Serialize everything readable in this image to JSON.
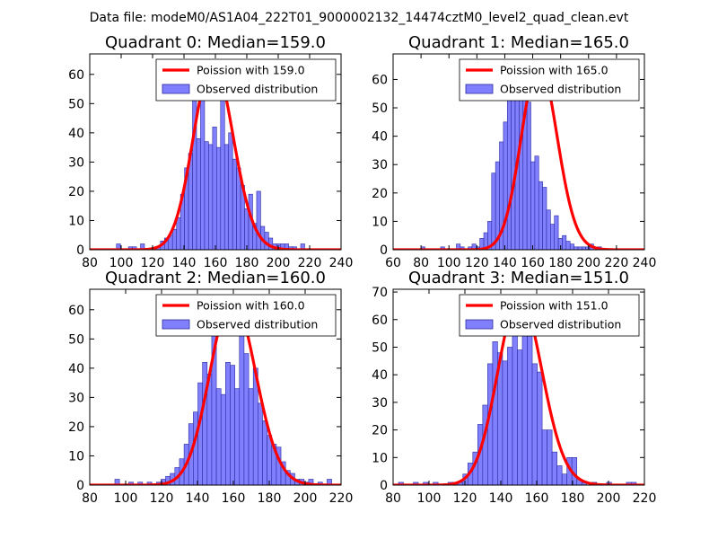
{
  "figure": {
    "suptitle": "Data file: modeM0/AS1A04_222T01_9000002132_14474cztM0_level2_quad_clean.evt"
  },
  "colors": {
    "bar_fill": "#8080ff",
    "bar_edge": "#2a2aa0",
    "curve": "#ff0000",
    "axes": "#000000",
    "background": "#ffffff"
  },
  "chart_data": [
    {
      "type": "bar",
      "title": "Quadrant 0: Median=159.0",
      "median": 159.0,
      "xlim": [
        80,
        240
      ],
      "ylim": [
        0,
        67
      ],
      "xticks": [
        80,
        100,
        120,
        140,
        160,
        180,
        200,
        220,
        240
      ],
      "yticks": [
        0,
        10,
        20,
        30,
        40,
        50,
        60
      ],
      "bin_start": 97,
      "bin_width": 2.55,
      "values": [
        2,
        0,
        0,
        1,
        1,
        0,
        2,
        0,
        0,
        0,
        1,
        3,
        4,
        5,
        7,
        11,
        19,
        28,
        33,
        51,
        38,
        60,
        37,
        36,
        42,
        35,
        63,
        36,
        40,
        31,
        28,
        22,
        14,
        19,
        9,
        20,
        8,
        6,
        4,
        2,
        2,
        2,
        2,
        1,
        1,
        0,
        2
      ],
      "curve_peak": 64.2,
      "legend": {
        "curve_label": "Poission with 159.0",
        "bars_label": "Observed distribution"
      }
    },
    {
      "type": "bar",
      "title": "Quadrant 1: Median=165.0",
      "median": 165.0,
      "xlim": [
        60,
        240
      ],
      "ylim": [
        0,
        69
      ],
      "xticks": [
        60,
        80,
        100,
        120,
        140,
        160,
        180,
        200,
        220,
        240
      ],
      "yticks": [
        0,
        10,
        20,
        30,
        40,
        50,
        60
      ],
      "bin_start": 80,
      "bin_width": 2.81,
      "values": [
        1,
        0,
        0,
        0,
        0,
        1,
        0,
        0,
        0,
        2,
        1,
        0,
        1,
        2,
        1,
        4,
        6,
        10,
        27,
        31,
        38,
        45,
        55,
        53,
        60,
        64,
        62,
        52,
        31,
        33,
        24,
        22,
        14,
        9,
        12,
        4,
        5,
        3,
        2,
        1,
        1,
        1,
        1,
        2,
        0,
        1
      ],
      "curve_peak": 65.7,
      "legend": {
        "curve_label": "Poission with 165.0",
        "bars_label": "Observed distribution"
      }
    },
    {
      "type": "bar",
      "title": "Quadrant 2: Median=160.0",
      "median": 160.0,
      "xlim": [
        80,
        220
      ],
      "ylim": [
        0,
        67
      ],
      "xticks": [
        80,
        100,
        120,
        140,
        160,
        180,
        200,
        220
      ],
      "yticks": [
        0,
        10,
        20,
        30,
        40,
        50,
        60
      ],
      "bin_start": 94,
      "bin_width": 2.57,
      "values": [
        2,
        0,
        0,
        1,
        0,
        1,
        0,
        1,
        0,
        1,
        2,
        3,
        4,
        6,
        9,
        14,
        21,
        25,
        35,
        42,
        38,
        51,
        33,
        31,
        42,
        41,
        33,
        55,
        45,
        33,
        40,
        28,
        22,
        17,
        14,
        13,
        8,
        5,
        4,
        2,
        2,
        1,
        2,
        0,
        1,
        0,
        2
      ],
      "curve_peak": 64.0,
      "legend": {
        "curve_label": "Poission with 160.0",
        "bars_label": "Observed distribution"
      }
    },
    {
      "type": "bar",
      "title": "Quadrant 3: Median=151.0",
      "median": 151.0,
      "xlim": [
        80,
        220
      ],
      "ylim": [
        0,
        71
      ],
      "xticks": [
        80,
        100,
        120,
        140,
        160,
        180,
        200,
        220
      ],
      "yticks": [
        0,
        10,
        20,
        30,
        40,
        50,
        60,
        70
      ],
      "bin_start": 83,
      "bin_width": 2.76,
      "values": [
        1,
        0,
        0,
        1,
        0,
        1,
        0,
        1,
        0,
        0,
        1,
        1,
        1,
        4,
        8,
        12,
        22,
        29,
        44,
        52,
        48,
        45,
        50,
        68,
        49,
        60,
        54,
        44,
        41,
        20,
        20,
        12,
        7,
        4,
        10,
        10,
        2,
        1,
        0,
        1,
        0,
        0,
        1,
        0,
        0,
        0,
        1,
        1
      ],
      "curve_peak": 68.2,
      "legend": {
        "curve_label": "Poission with 151.0",
        "bars_label": "Observed distribution"
      }
    }
  ]
}
